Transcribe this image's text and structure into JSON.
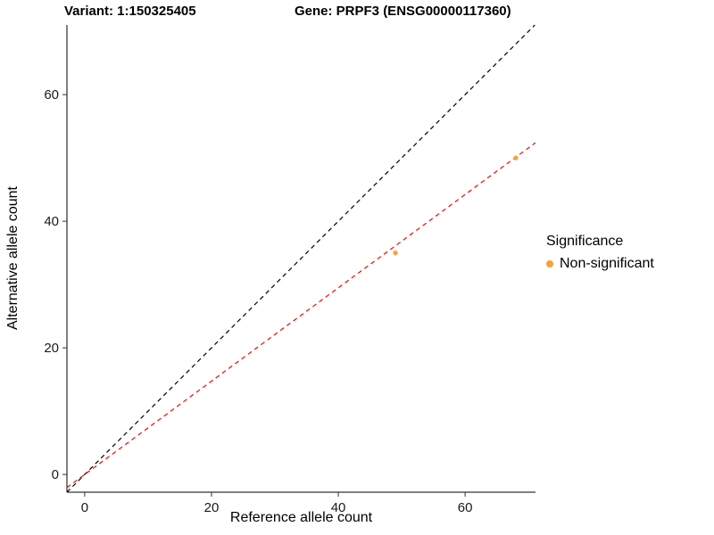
{
  "chart_data": {
    "type": "scatter",
    "title_left": "Variant: 1:150325405",
    "title_right": "Gene: PRPF3 (ENSG00000117360)",
    "xlabel": "Reference allele count",
    "ylabel": "Alternative allele count",
    "xlim": [
      -2.8,
      71.1
    ],
    "ylim": [
      -2.8,
      71.0
    ],
    "xticks": [
      0,
      20,
      40,
      60
    ],
    "yticks": [
      0,
      20,
      40,
      60
    ],
    "grid": false,
    "points": [
      {
        "x": 49,
        "y": 35,
        "series": "Non-significant"
      },
      {
        "x": 68,
        "y": 50,
        "series": "Non-significant"
      }
    ],
    "point_color": "#F8A03C",
    "lines": [
      {
        "name": "identity",
        "slope": 1,
        "intercept": 0,
        "color": "#000000",
        "style": "dashed"
      },
      {
        "name": "fit",
        "slope": 0.737,
        "intercept": 0,
        "color": "#FF0000",
        "style": "dashed"
      }
    ],
    "legend": {
      "title": "Significance",
      "position": "right",
      "entries": [
        {
          "label": "Non-significant",
          "color": "#F8A03C"
        }
      ]
    }
  }
}
